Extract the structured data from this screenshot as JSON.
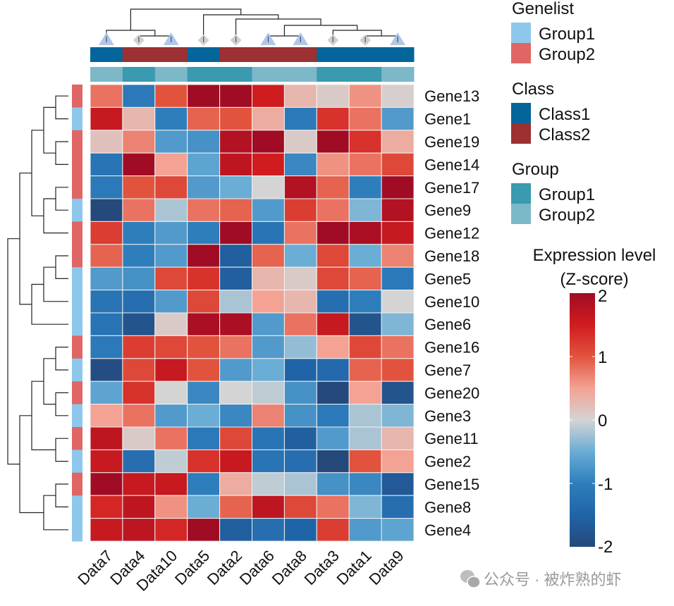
{
  "chart_data": {
    "type": "heatmap",
    "columns": [
      "Data7",
      "Data4",
      "Data10",
      "Data5",
      "Data2",
      "Data6",
      "Data8",
      "Data3",
      "Data1",
      "Data9"
    ],
    "rows": [
      "Gene13",
      "Gene1",
      "Gene19",
      "Gene14",
      "Gene17",
      "Gene9",
      "Gene12",
      "Gene18",
      "Gene5",
      "Gene10",
      "Gene6",
      "Gene16",
      "Gene7",
      "Gene20",
      "Gene3",
      "Gene11",
      "Gene2",
      "Gene15",
      "Gene8",
      "Gene4"
    ],
    "values": [
      [
        0.8,
        -1.1,
        1.0,
        2.0,
        2.0,
        1.5,
        0.3,
        0.1,
        0.6,
        0.05
      ],
      [
        1.6,
        0.3,
        -1.0,
        0.9,
        1.0,
        0.4,
        -1.1,
        1.3,
        0.8,
        -0.7
      ],
      [
        0.2,
        0.7,
        -0.7,
        -0.8,
        1.8,
        2.0,
        0.1,
        2.0,
        1.3,
        0.4
      ],
      [
        -1.2,
        2.0,
        0.5,
        -0.6,
        1.7,
        1.5,
        -0.9,
        0.6,
        0.8,
        1.1
      ],
      [
        -1.1,
        1.0,
        1.1,
        -0.7,
        -0.5,
        0.0,
        1.8,
        0.9,
        -1.0,
        2.0
      ],
      [
        -2.0,
        0.8,
        -0.2,
        0.8,
        0.9,
        -0.7,
        1.2,
        0.8,
        -0.4,
        1.8
      ],
      [
        1.2,
        -1.0,
        -0.7,
        -1.0,
        2.0,
        -1.2,
        0.8,
        2.0,
        1.9,
        1.6
      ],
      [
        0.9,
        -1.0,
        -0.7,
        2.0,
        -1.6,
        0.9,
        -0.5,
        1.1,
        -0.5,
        0.7
      ],
      [
        -0.7,
        -0.8,
        1.1,
        1.3,
        -1.6,
        0.3,
        0.1,
        1.1,
        0.9,
        -1.1
      ],
      [
        -1.2,
        -1.3,
        -0.7,
        1.1,
        -0.2,
        0.5,
        0.3,
        -1.3,
        -1.0,
        0.0
      ],
      [
        -1.2,
        -1.8,
        0.1,
        1.9,
        1.9,
        -0.7,
        0.8,
        1.6,
        -1.8,
        -0.4
      ],
      [
        -1.1,
        1.2,
        1.1,
        1.0,
        0.8,
        -0.7,
        -0.3,
        0.5,
        1.1,
        0.8
      ],
      [
        -1.9,
        1.1,
        1.6,
        1.0,
        -0.7,
        -0.5,
        -1.5,
        -1.4,
        0.9,
        1.0
      ],
      [
        -0.6,
        1.3,
        0.0,
        -0.9,
        0.0,
        -0.1,
        -0.8,
        -2.0,
        0.5,
        -1.8
      ],
      [
        0.5,
        0.8,
        -0.7,
        -0.5,
        -0.9,
        0.7,
        -0.8,
        -1.1,
        -0.2,
        -0.4
      ],
      [
        1.7,
        0.1,
        0.8,
        -1.1,
        1.1,
        -1.2,
        -1.6,
        -0.7,
        -0.2,
        0.3
      ],
      [
        1.6,
        -1.3,
        -0.1,
        1.3,
        1.6,
        -1.2,
        -1.3,
        -2.0,
        1.0,
        0.5
      ],
      [
        2.0,
        1.6,
        1.6,
        -1.0,
        0.4,
        -0.1,
        -0.2,
        -0.8,
        -0.9,
        -1.7
      ],
      [
        1.4,
        1.7,
        0.6,
        -0.5,
        0.9,
        1.7,
        1.1,
        0.8,
        -0.4,
        -1.3
      ],
      [
        1.6,
        1.7,
        1.4,
        2.0,
        -1.6,
        -1.3,
        -1.5,
        1.2,
        -0.7,
        -0.6
      ]
    ],
    "row_annotation": {
      "title": "Genelist",
      "values": [
        "Group2",
        "Group1",
        "Group2",
        "Group2",
        "Group2",
        "Group1",
        "Group2",
        "Group2",
        "Group1",
        "Group1",
        "Group1",
        "Group2",
        "Group1",
        "Group2",
        "Group1",
        "Group2",
        "Group1",
        "Group2",
        "Group1",
        "Group1"
      ],
      "legend": [
        {
          "label": "Group1",
          "color": "#8DC8EC"
        },
        {
          "label": "Group2",
          "color": "#E06666"
        }
      ]
    },
    "col_annotations": [
      {
        "title": "Class",
        "values": [
          "Class1",
          "Class2",
          "Class2",
          "Class1",
          "Class2",
          "Class2",
          "Class2",
          "Class1",
          "Class1",
          "Class1"
        ],
        "legend": [
          {
            "label": "Class1",
            "color": "#04659A"
          },
          {
            "label": "Class2",
            "color": "#9C3032"
          }
        ]
      },
      {
        "title": "Group",
        "values": [
          "Group2",
          "Group1",
          "Group2",
          "Group1",
          "Group1",
          "Group2",
          "Group2",
          "Group1",
          "Group1",
          "Group2"
        ],
        "legend": [
          {
            "label": "Group1",
            "color": "#3A9AB0"
          },
          {
            "label": "Group2",
            "color": "#7DB8C8"
          }
        ]
      }
    ],
    "col_markers": {
      "Group1": "diamond",
      "Group2": "triangle"
    },
    "color_scale": {
      "title_line1": "Expression level",
      "title_line2": "(Z-score)",
      "range": [
        -2,
        2
      ],
      "ticks": [
        "2",
        "1",
        "0",
        "-1",
        "-2"
      ],
      "stops": [
        [
          -2,
          "#25497A"
        ],
        [
          -1.5,
          "#2064A8"
        ],
        [
          -1,
          "#2E7EBC"
        ],
        [
          -0.5,
          "#6AADD5"
        ],
        [
          0,
          "#D4D4D4"
        ],
        [
          0.5,
          "#F3A293"
        ],
        [
          1,
          "#E2533E"
        ],
        [
          1.5,
          "#D01C1F"
        ],
        [
          2,
          "#A00C24"
        ]
      ]
    },
    "row_clustering": "dendrogram-left",
    "col_clustering": "dendrogram-top"
  },
  "watermark": {
    "text": "公众号 · 被炸熟的虾",
    "icon": "wechat-icon"
  }
}
